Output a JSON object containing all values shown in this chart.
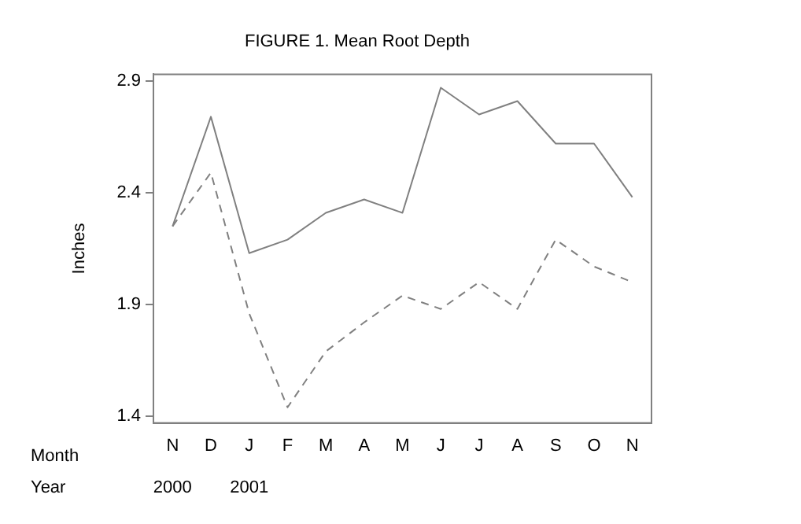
{
  "chart_data": {
    "type": "line",
    "title": "FIGURE 1. Mean Root Depth",
    "ylabel": "Inches",
    "categories": [
      "N",
      "D",
      "J",
      "F",
      "M",
      "A",
      "M",
      "J",
      "J",
      "A",
      "S",
      "O",
      "N"
    ],
    "series": [
      {
        "color": "#808080",
        "line_style": "solid",
        "values": [
          2.25,
          2.74,
          2.13,
          2.19,
          2.31,
          2.37,
          2.31,
          2.87,
          2.75,
          2.81,
          2.62,
          2.62,
          2.38
        ]
      },
      {
        "color": "#808080",
        "line_style": "dashed",
        "values": [
          2.25,
          2.49,
          1.86,
          1.44,
          1.69,
          1.82,
          1.94,
          1.88,
          2.0,
          1.88,
          2.19,
          2.07,
          2.0
        ]
      }
    ],
    "ylim": [
      1.37,
      2.93
    ],
    "yticks": [
      1.4,
      1.9,
      2.4,
      2.9
    ],
    "grid": false,
    "legend": false,
    "marker": "none",
    "annotations": [
      "Month",
      "Year",
      "2000",
      "2001"
    ]
  }
}
